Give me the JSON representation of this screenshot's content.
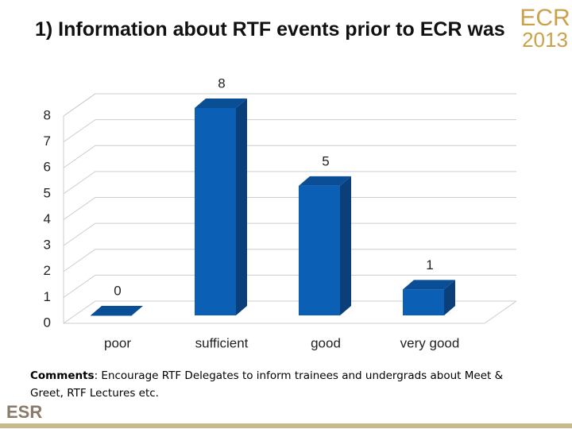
{
  "chart_data": {
    "type": "bar3d",
    "title": "1) Information about RTF events prior to ECR was",
    "categories": [
      "poor",
      "sufficient",
      "good",
      "very good"
    ],
    "values": [
      0,
      8,
      5,
      1
    ],
    "color": "#0b5fb5",
    "ylim": [
      0,
      8
    ],
    "yticks": [
      0,
      1,
      2,
      3,
      4,
      5,
      6,
      7,
      8
    ],
    "grid": true
  },
  "comment_label": "Comments",
  "comment": ": Encourage RTF Delegates to inform trainees and undergrads about Meet & Greet, RTF Lectures etc.",
  "logo": {
    "name": "ECR",
    "year": "2013"
  },
  "footer_logo": "ESR"
}
